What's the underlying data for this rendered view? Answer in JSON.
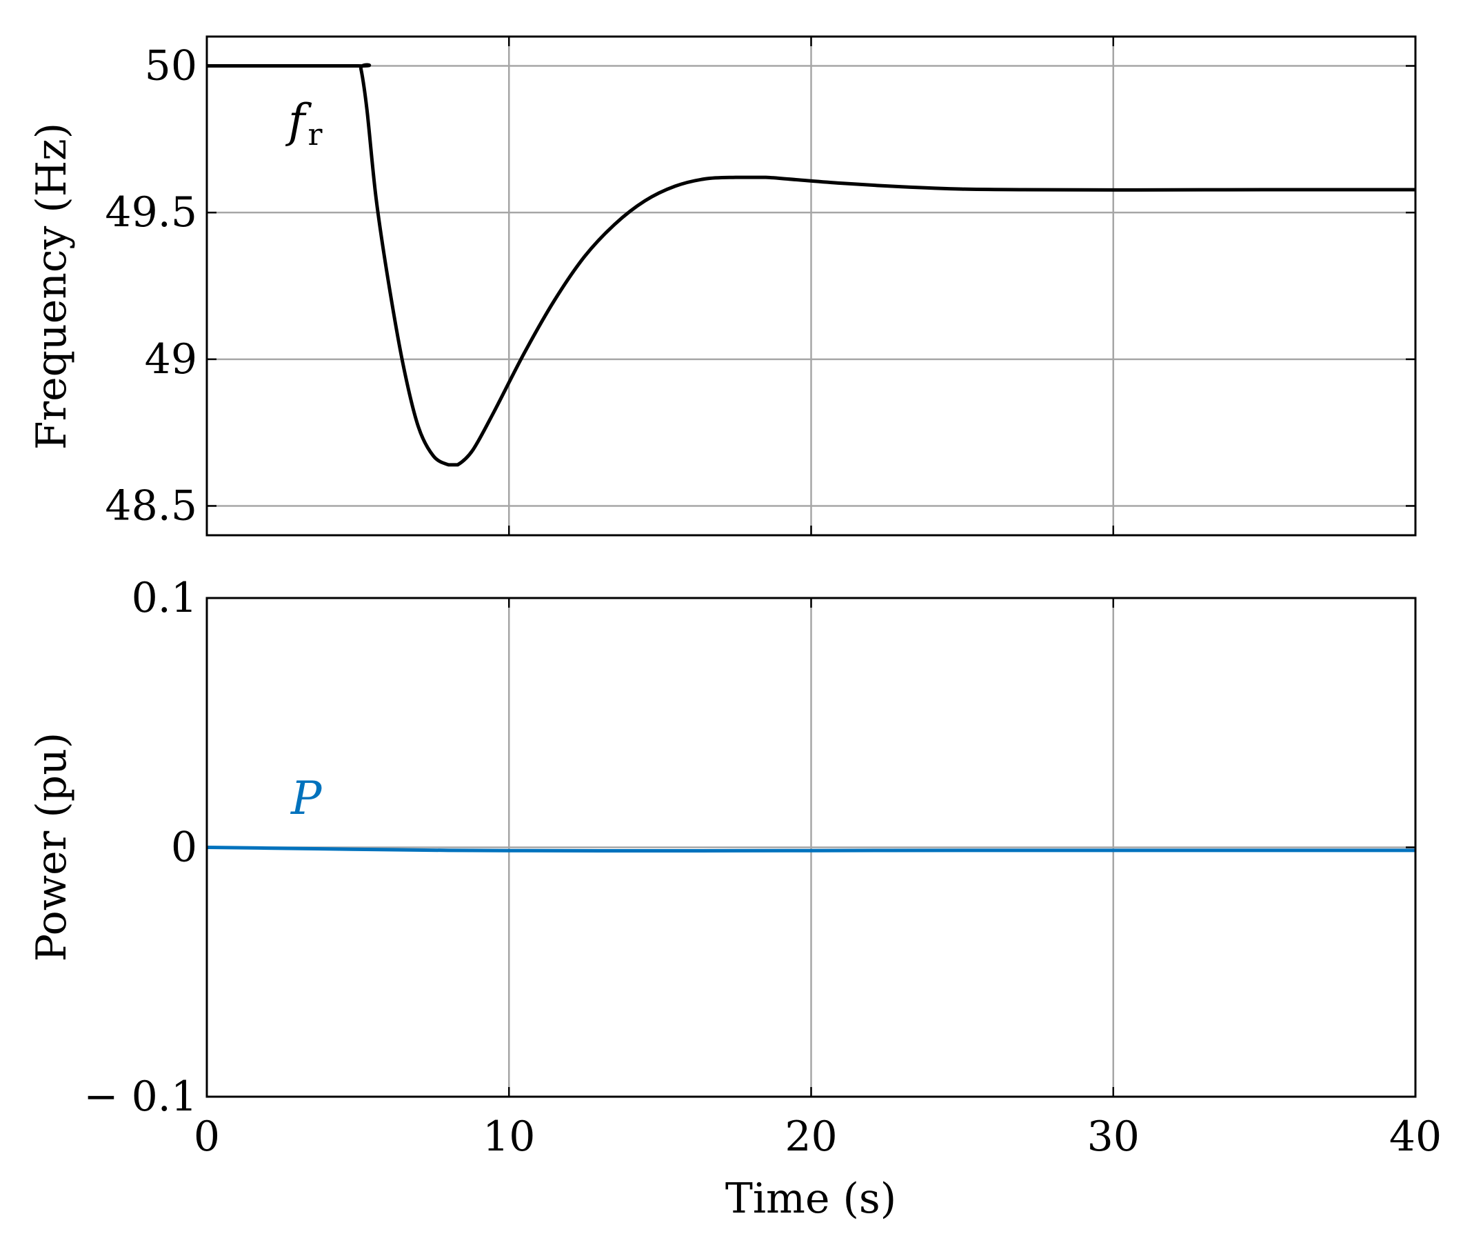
{
  "chart_data": [
    {
      "type": "line",
      "panel": "top",
      "ylabel": "Frequency (Hz)",
      "xlim": [
        0,
        40
      ],
      "ylim": [
        48.4,
        50.1
      ],
      "yticks": [
        "48.5",
        "49",
        "49.5",
        "50"
      ],
      "ytick_values": [
        48.5,
        49,
        49.5,
        50
      ],
      "xticks": [
        0,
        10,
        20,
        30,
        40
      ],
      "grid": true,
      "series": [
        {
          "name": "f",
          "name_subscript": "r",
          "color": "#000000",
          "x": [
            0,
            5,
            5.1,
            5.3,
            5.6,
            6,
            6.5,
            7,
            7.5,
            8,
            8.3,
            8.8,
            9.5,
            10.5,
            11.5,
            12.5,
            13.5,
            14.5,
            15.5,
            16.5,
            17.5,
            18.5,
            19.5,
            21,
            23,
            25,
            27,
            30,
            35,
            40
          ],
          "y": [
            50,
            50,
            49.99,
            49.85,
            49.55,
            49.27,
            48.98,
            48.77,
            48.67,
            48.64,
            48.64,
            48.69,
            48.82,
            49.02,
            49.2,
            49.35,
            49.46,
            49.54,
            49.59,
            49.615,
            49.62,
            49.62,
            49.612,
            49.6,
            49.588,
            49.58,
            49.578,
            49.577,
            49.578,
            49.578
          ]
        }
      ],
      "annotations": [
        {
          "text": "f",
          "subscript": "r"
        }
      ]
    },
    {
      "type": "line",
      "panel": "bottom",
      "ylabel": "Power (pu)",
      "xlabel": "Time (s)",
      "xlim": [
        0,
        40
      ],
      "ylim": [
        -0.1,
        0.1
      ],
      "yticks": [
        "− 0.1",
        "0",
        "0.1"
      ],
      "ytick_values": [
        -0.1,
        0,
        0.1
      ],
      "xticks": [
        "0",
        "10",
        "20",
        "30",
        "40"
      ],
      "xtick_values": [
        0,
        10,
        20,
        30,
        40
      ],
      "grid": true,
      "series": [
        {
          "name": "P",
          "color": "#0072bd",
          "x": [
            0,
            2,
            5,
            8,
            10,
            15,
            20,
            25,
            30,
            35,
            40
          ],
          "y": [
            0,
            -0.0003,
            -0.0008,
            -0.0012,
            -0.0013,
            -0.0014,
            -0.0013,
            -0.0012,
            -0.0012,
            -0.0012,
            -0.0012
          ]
        }
      ],
      "annotations": [
        {
          "text": "P"
        }
      ]
    }
  ]
}
